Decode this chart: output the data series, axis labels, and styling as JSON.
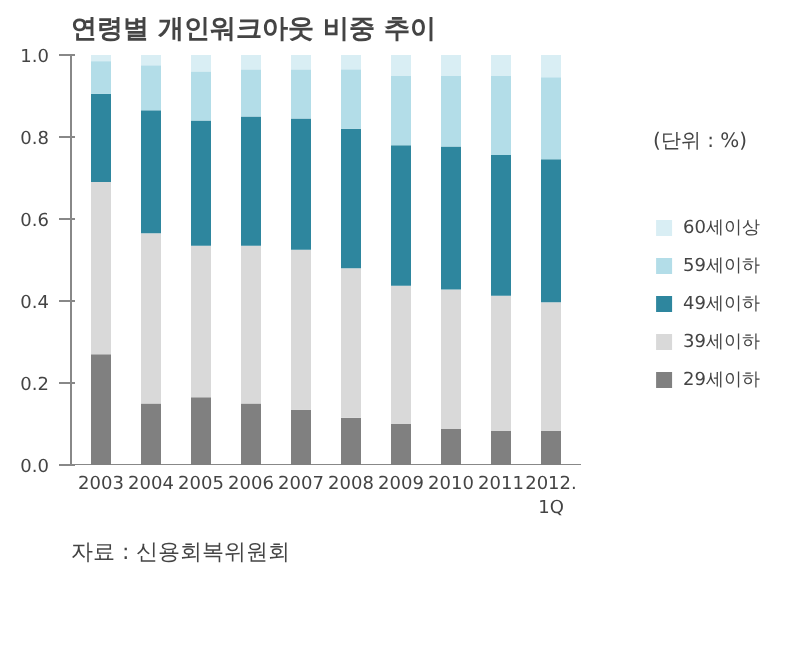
{
  "chart_data": {
    "type": "bar",
    "title": "연령별 개인워크아웃 비중 추이",
    "stacked": true,
    "categories": [
      "2003",
      "2004",
      "2005",
      "2006",
      "2007",
      "2008",
      "2009",
      "2010",
      "2011",
      "2012.\n1Q"
    ],
    "series": [
      {
        "name": "29세이하",
        "color": "#808080",
        "values": [
          0.27,
          0.15,
          0.165,
          0.15,
          0.135,
          0.115,
          0.1,
          0.088,
          0.083,
          0.083
        ]
      },
      {
        "name": "39세이하",
        "color": "#d9d9d9",
        "values": [
          0.42,
          0.415,
          0.37,
          0.385,
          0.39,
          0.365,
          0.337,
          0.34,
          0.33,
          0.314
        ]
      },
      {
        "name": "49세이하",
        "color": "#2e869e",
        "values": [
          0.215,
          0.3,
          0.305,
          0.315,
          0.32,
          0.34,
          0.343,
          0.349,
          0.343,
          0.349
        ]
      },
      {
        "name": "59세이하",
        "color": "#b3dde8",
        "values": [
          0.08,
          0.11,
          0.12,
          0.115,
          0.12,
          0.145,
          0.17,
          0.173,
          0.194,
          0.2
        ]
      },
      {
        "name": "60세이상",
        "color": "#d9eef4",
        "values": [
          0.015,
          0.025,
          0.04,
          0.035,
          0.035,
          0.035,
          0.05,
          0.05,
          0.05,
          0.054
        ]
      }
    ],
    "ylim": [
      0,
      1
    ],
    "yticks": [
      "0.0",
      0.2,
      0.4,
      0.6,
      0.8,
      "1.0"
    ],
    "grid": false,
    "legend": "right",
    "annotations": [
      "(단위 : %)",
      "자료 : 신용회복위원회"
    ]
  }
}
